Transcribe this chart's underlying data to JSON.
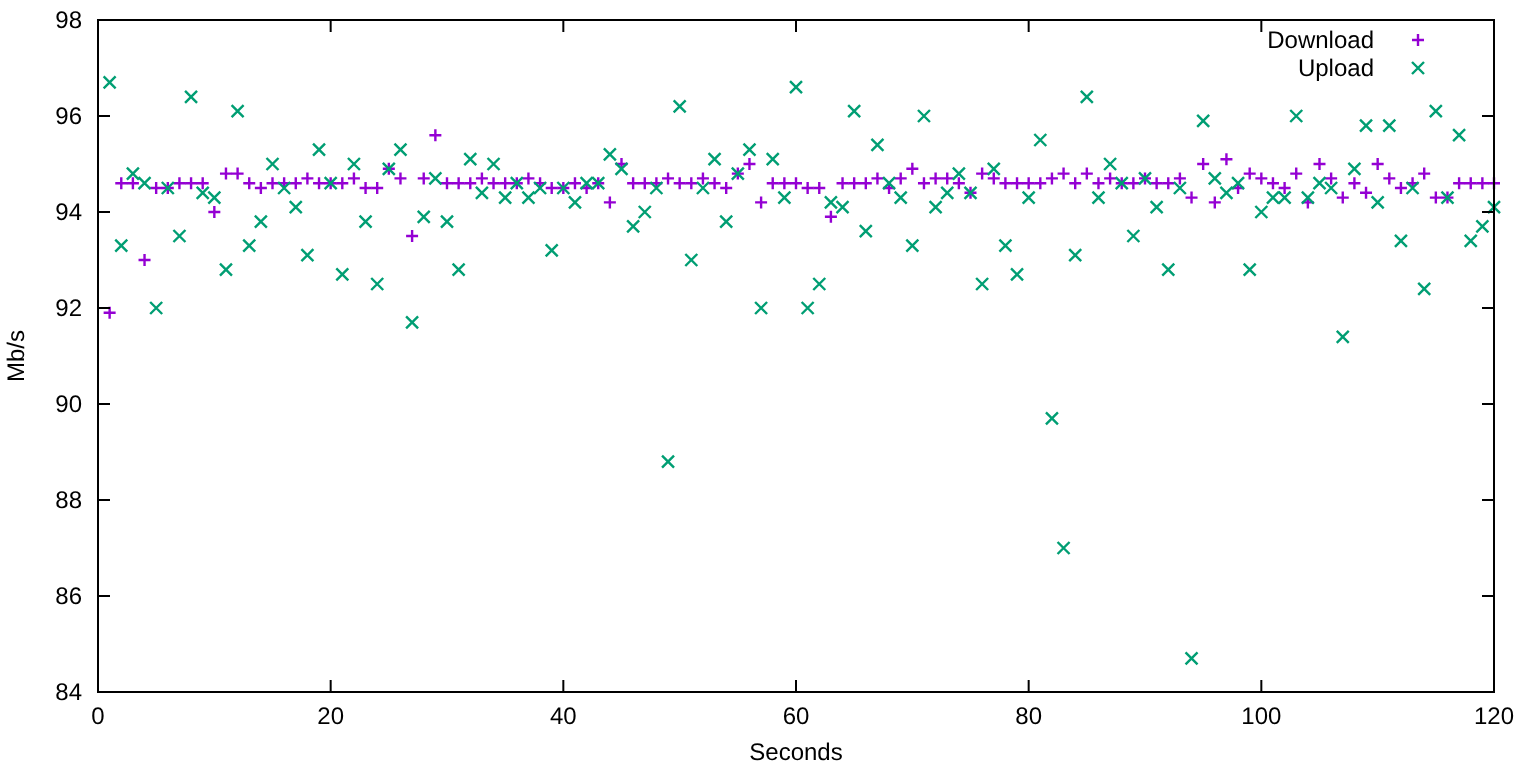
{
  "chart_data": {
    "type": "scatter",
    "xlabel": "Seconds",
    "ylabel": "Mb/s",
    "x": [
      1,
      2,
      3,
      4,
      5,
      6,
      7,
      8,
      9,
      10,
      11,
      12,
      13,
      14,
      15,
      16,
      17,
      18,
      19,
      20,
      21,
      22,
      23,
      24,
      25,
      26,
      27,
      28,
      29,
      30,
      31,
      32,
      33,
      34,
      35,
      36,
      37,
      38,
      39,
      40,
      41,
      42,
      43,
      44,
      45,
      46,
      47,
      48,
      49,
      50,
      51,
      52,
      53,
      54,
      55,
      56,
      57,
      58,
      59,
      60,
      61,
      62,
      63,
      64,
      65,
      66,
      67,
      68,
      69,
      70,
      71,
      72,
      73,
      74,
      75,
      76,
      77,
      78,
      79,
      80,
      81,
      82,
      83,
      84,
      85,
      86,
      87,
      88,
      89,
      90,
      91,
      92,
      93,
      94,
      95,
      96,
      97,
      98,
      99,
      100,
      101,
      102,
      103,
      104,
      105,
      106,
      107,
      108,
      109,
      110,
      111,
      112,
      113,
      114,
      115,
      116,
      117,
      118,
      119,
      120
    ],
    "series": [
      {
        "name": "Download",
        "color": "#9400d3",
        "values": [
          91.9,
          94.6,
          94.6,
          93.0,
          94.5,
          94.5,
          94.6,
          94.6,
          94.6,
          94.0,
          94.8,
          94.8,
          94.6,
          94.5,
          94.6,
          94.6,
          94.6,
          94.7,
          94.6,
          94.6,
          94.6,
          94.7,
          94.5,
          94.5,
          94.9,
          94.7,
          93.5,
          94.7,
          95.6,
          94.6,
          94.6,
          94.6,
          94.7,
          94.6,
          94.6,
          94.6,
          94.7,
          94.6,
          94.5,
          94.5,
          94.6,
          94.5,
          94.6,
          94.2,
          95.0,
          94.6,
          94.6,
          94.6,
          94.7,
          94.6,
          94.6,
          94.7,
          94.6,
          94.5,
          94.8,
          95.0,
          94.2,
          94.6,
          94.6,
          94.6,
          94.5,
          94.5,
          93.9,
          94.6,
          94.6,
          94.6,
          94.7,
          94.5,
          94.7,
          94.9,
          94.6,
          94.7,
          94.7,
          94.6,
          94.4,
          94.8,
          94.7,
          94.6,
          94.6,
          94.6,
          94.6,
          94.7,
          94.8,
          94.6,
          94.8,
          94.6,
          94.7,
          94.6,
          94.6,
          94.7,
          94.6,
          94.6,
          94.7,
          94.3,
          95.0,
          94.2,
          95.1,
          94.5,
          94.8,
          94.7,
          94.6,
          94.5,
          94.8,
          94.2,
          95.0,
          94.7,
          94.3,
          94.6,
          94.4,
          95.0,
          94.7,
          94.5,
          94.6,
          94.8,
          94.3,
          94.3,
          94.6,
          94.6,
          94.6,
          94.6
        ]
      },
      {
        "name": "Upload",
        "color": "#009e73",
        "values": [
          96.7,
          93.3,
          94.8,
          94.6,
          92.0,
          94.5,
          93.5,
          96.4,
          94.4,
          94.3,
          92.8,
          96.1,
          93.3,
          93.8,
          95.0,
          94.5,
          94.1,
          93.1,
          95.3,
          94.6,
          92.7,
          95.0,
          93.8,
          92.5,
          94.9,
          95.3,
          91.7,
          93.9,
          94.7,
          93.8,
          92.8,
          95.1,
          94.4,
          95.0,
          94.3,
          94.6,
          94.3,
          94.5,
          93.2,
          94.5,
          94.2,
          94.6,
          94.6,
          95.2,
          94.9,
          93.7,
          94.0,
          94.5,
          88.8,
          96.2,
          93.0,
          94.5,
          95.1,
          93.8,
          94.8,
          95.3,
          92.0,
          95.1,
          94.3,
          96.6,
          92.0,
          92.5,
          94.2,
          94.1,
          96.1,
          93.6,
          95.4,
          94.6,
          94.3,
          93.3,
          96.0,
          94.1,
          94.4,
          94.8,
          94.4,
          92.5,
          94.9,
          93.3,
          92.7,
          94.3,
          95.5,
          89.7,
          87.0,
          93.1,
          96.4,
          94.3,
          95.0,
          94.6,
          93.5,
          94.7,
          94.1,
          92.8,
          94.5,
          84.7,
          95.9,
          94.7,
          94.4,
          94.6,
          92.8,
          94.0,
          94.3,
          94.3,
          96.0,
          94.3,
          94.6,
          94.5,
          91.4,
          94.9,
          95.8,
          94.2,
          95.8,
          93.4,
          94.5,
          92.4,
          96.1,
          94.3,
          95.6,
          93.4,
          93.7,
          94.1
        ]
      }
    ],
    "xlim": [
      0,
      120
    ],
    "xticks": [
      0,
      20,
      40,
      60,
      80,
      100,
      120
    ],
    "ylim": [
      84,
      98
    ],
    "yticks": [
      84,
      86,
      88,
      90,
      92,
      94,
      96,
      98
    ],
    "legend": "top right",
    "marker": "cross"
  }
}
